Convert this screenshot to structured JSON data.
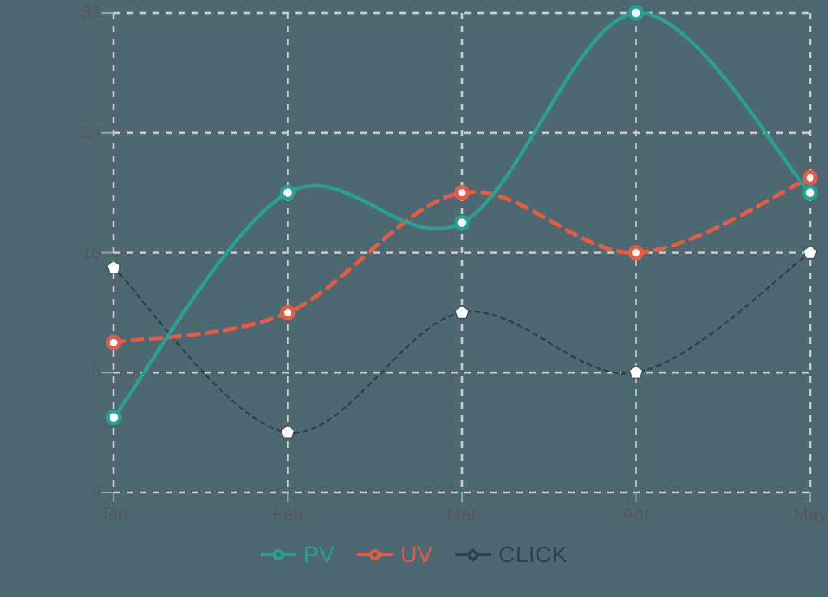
{
  "background": "#4e6872",
  "chart_data": {
    "type": "line",
    "title": "",
    "xlabel": "",
    "ylabel": "",
    "categories": [
      "Jan",
      "Feb",
      "Mar",
      "Apr",
      "May"
    ],
    "series": [
      {
        "name": "PV",
        "values": [
          5,
          20,
          18,
          32,
          20
        ],
        "color": "#2aa092",
        "line_style": "solid",
        "line_width": 4.5,
        "marker": "circle",
        "marker_fill": "#ffffff"
      },
      {
        "name": "UV",
        "values": [
          10,
          12,
          20,
          16,
          21
        ],
        "color": "#e25c46",
        "line_style": "dashed",
        "line_width": 5,
        "marker": "circle",
        "marker_fill": "#ffffff"
      },
      {
        "name": "CLICK",
        "values": [
          15,
          4,
          12,
          8,
          16
        ],
        "color": "#2b4350",
        "line_style": "dashed",
        "line_width": 2.5,
        "marker": "pentagon",
        "marker_fill": "#ffffff"
      }
    ],
    "yticks": [
      0,
      8,
      16,
      24,
      32
    ],
    "ylim": [
      0,
      32
    ],
    "smooth": true,
    "grid": true,
    "grid_color": "#cccccc",
    "tick_color": "#9aa0a2",
    "axis_label_color": "#55585b",
    "legend_position": "bottom"
  }
}
